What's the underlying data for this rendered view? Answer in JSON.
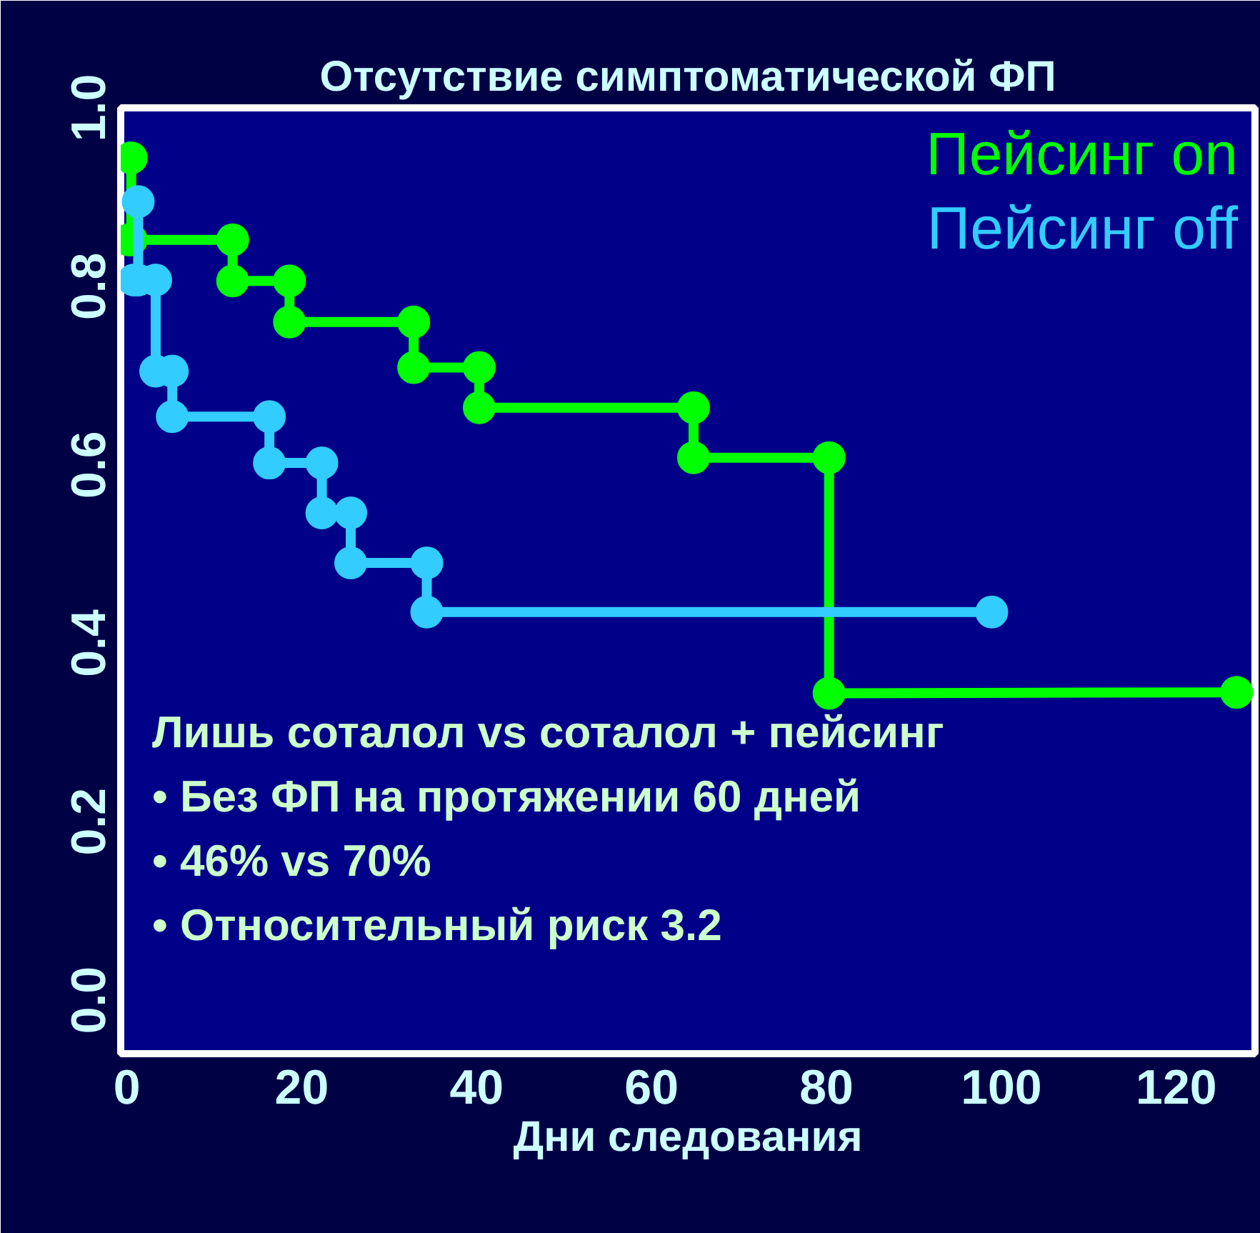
{
  "chart_data": {
    "type": "line",
    "title": "Отсутствие симптоматической ФП",
    "xlabel": "Дни следования",
    "xlim": [
      -0.7,
      129
    ],
    "xticks": [
      0,
      20,
      40,
      60,
      80,
      100,
      120
    ],
    "ylim": [
      -0.06,
      1.0
    ],
    "yticks": [
      {
        "value": 0,
        "label": "0.0"
      },
      {
        "value": 0.2,
        "label": "0.2"
      },
      {
        "value": 0.4,
        "label": "0.4"
      },
      {
        "value": 0.6,
        "label": "0.6"
      },
      {
        "value": 0.8,
        "label": "0.8"
      },
      {
        "value": 1.0,
        "label": "1.0"
      }
    ],
    "series": [
      {
        "name": "Пейсинг on",
        "color": "#00ff00",
        "x": [
          0.5,
          0.5,
          0.2,
          12.1,
          12.1,
          18.6,
          18.6,
          32.8,
          32.8,
          40.3,
          40.3,
          64.8,
          64.8,
          80.3,
          80.3,
          126.9
        ],
        "values": [
          0.944,
          0.852,
          0.852,
          0.852,
          0.806,
          0.806,
          0.76,
          0.76,
          0.709,
          0.709,
          0.664,
          0.664,
          0.608,
          0.608,
          0.344,
          0.345
        ]
      },
      {
        "name": "Пейсинг off",
        "color": "#33ccff",
        "x": [
          1.3,
          1.3,
          0.8,
          3.3,
          3.3,
          5.2,
          5.2,
          16.3,
          16.3,
          22.3,
          22.3,
          25.6,
          25.6,
          34.3,
          34.3,
          98.9
        ],
        "values": [
          0.895,
          0.807,
          0.807,
          0.807,
          0.705,
          0.705,
          0.654,
          0.654,
          0.602,
          0.602,
          0.546,
          0.546,
          0.49,
          0.49,
          0.435,
          0.435
        ]
      }
    ],
    "marker": "circle",
    "line_style": "solid",
    "legend": "top right",
    "grid": false,
    "annotations": [
      "Лишь соталол vs соталол + пейсинг",
      "•   Без ФП на протяжении 60 дней",
      "•    46% vs 70%",
      "•   Относительный риск 3.2"
    ]
  }
}
